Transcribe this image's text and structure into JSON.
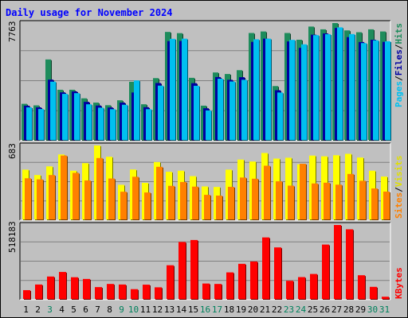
{
  "chart_data": [
    {
      "type": "bar",
      "title": "Daily usage for November 2024",
      "categories": [
        "1",
        "2",
        "3",
        "4",
        "5",
        "6",
        "7",
        "8",
        "9",
        "10",
        "11",
        "12",
        "13",
        "14",
        "15",
        "16",
        "17",
        "18",
        "19",
        "20",
        "21",
        "22",
        "23",
        "24",
        "25",
        "26",
        "27",
        "28",
        "29",
        "30",
        "31"
      ],
      "weekend_days": [
        "3",
        "9",
        "10",
        "16",
        "17",
        "23",
        "24",
        "30",
        "31"
      ],
      "ymax_label": "7763",
      "ylim": [
        0,
        7763
      ],
      "series": [
        {
          "name": "Hits",
          "color": "#1E8C5C",
          "values": [
            2360,
            2260,
            5260,
            3280,
            3280,
            2720,
            2440,
            2270,
            2590,
            3800,
            2330,
            4040,
            7060,
            6980,
            4060,
            2240,
            4410,
            4310,
            4560,
            6990,
            7090,
            3520,
            6990,
            6550,
            7410,
            7230,
            7640,
            7160,
            7040,
            7230,
            7090
          ]
        },
        {
          "name": "Files",
          "color": "#0000A0",
          "values": [
            2240,
            2130,
            3940,
            3110,
            3170,
            2490,
            2250,
            2120,
            2440,
            3100,
            2140,
            3720,
            6460,
            6470,
            3710,
            2070,
            4110,
            3930,
            4100,
            6410,
            6620,
            3250,
            6440,
            6020,
            6880,
            6960,
            7320,
            6720,
            6400,
            6550,
            6410
          ]
        },
        {
          "name": "Pages",
          "color": "#00C0F0",
          "values": [
            2130,
            2020,
            3810,
            3010,
            3060,
            2330,
            2110,
            2010,
            2300,
            3890,
            2010,
            3550,
            6610,
            6620,
            3540,
            1930,
            4000,
            3820,
            3930,
            6580,
            6620,
            3100,
            6540,
            6250,
            6850,
            6910,
            7360,
            6920,
            6330,
            6510,
            6450
          ]
        },
        {
          "name": "Sites",
          "color": "#FF8000",
          "values": [
            380,
            370,
            410,
            590,
            430,
            360,
            567,
            378,
            256,
            394,
            249,
            486,
            310,
            346,
            303,
            227,
            220,
            301,
            387,
            376,
            496,
            352,
            312,
            514,
            332,
            339,
            321,
            420,
            357,
            286,
            257
          ]
        },
        {
          "name": "Visits",
          "color": "#FFFF00",
          "values": [
            460,
            410,
            490,
            600,
            450,
            520,
            683,
            579,
            320,
            461,
            338,
            530,
            440,
            450,
            400,
            305,
            300,
            460,
            553,
            535,
            614,
            562,
            570,
            509,
            590,
            583,
            593,
            606,
            572,
            450,
            396
          ]
        },
        {
          "name": "KBytes",
          "color": "#FF0000",
          "values": [
            61400,
            101000,
            157000,
            189000,
            152000,
            140000,
            82900,
            105000,
            101000,
            68500,
            100000,
            81500,
            236000,
            399000,
            413000,
            108000,
            105000,
            186000,
            246000,
            262000,
            431000,
            361000,
            127000,
            153000,
            175000,
            381000,
            518183,
            488000,
            166000,
            84600,
            15400
          ]
        }
      ]
    }
  ],
  "right_labels": {
    "panel1": [
      "Pages",
      "/",
      "Files",
      "/",
      "Hits"
    ],
    "panel2": [
      "Sites",
      "/",
      "Visits"
    ],
    "panel3": [
      "KBytes"
    ]
  },
  "y_labels": {
    "panel1": "7763",
    "panel2": "683",
    "panel3": "518183"
  },
  "colors": {
    "background": "#C0C0C0",
    "plot_background": "#C0C0C0",
    "grid": "#808080",
    "title_text": "#0000FF",
    "day_text": "#000000",
    "weekend_text": "#00805C",
    "pages": "#00C0F0",
    "files": "#0000A0",
    "hits": "#1E8C5C",
    "sites": "#FF8000",
    "visits": "#FFFF00",
    "kbytes": "#FF0000"
  }
}
